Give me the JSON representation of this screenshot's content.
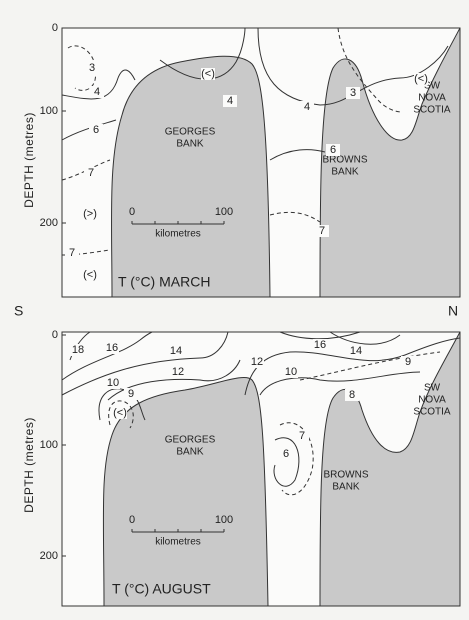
{
  "direction": {
    "left": "S",
    "right": "N"
  },
  "panels": [
    {
      "title": "T (°C) MARCH",
      "y_axis_label": "DEPTH (metres)",
      "yticks": [
        "0",
        "100",
        "200"
      ],
      "regions": [
        [
          "GEORGES",
          "BANK"
        ],
        [
          "BROWNS",
          "BANK"
        ],
        [
          "SW",
          "NOVA",
          "SCOTIA"
        ]
      ],
      "scale": {
        "ticks": [
          "0",
          "100"
        ],
        "unit": "kilometres"
      },
      "contour_labels": [
        "3",
        "4",
        "(<)",
        "4",
        "4",
        "3",
        "(<)",
        "6",
        "7",
        "6",
        "(>)",
        "7",
        "7",
        "(<)"
      ]
    },
    {
      "title": "T (°C) AUGUST",
      "y_axis_label": "DEPTH (metres)",
      "yticks": [
        "0",
        "100",
        "200"
      ],
      "regions": [
        [
          "GEORGES",
          "BANK"
        ],
        [
          "BROWNS",
          "BANK"
        ],
        [
          "SW",
          "NOVA",
          "SCOTIA"
        ]
      ],
      "scale": {
        "ticks": [
          "0",
          "100"
        ],
        "unit": "kilometres"
      },
      "contour_labels": [
        "18",
        "16",
        "14",
        "12",
        "12",
        "16",
        "14",
        "10",
        "9",
        "8",
        "10",
        "9",
        "(<)",
        "7",
        "6"
      ]
    }
  ]
}
